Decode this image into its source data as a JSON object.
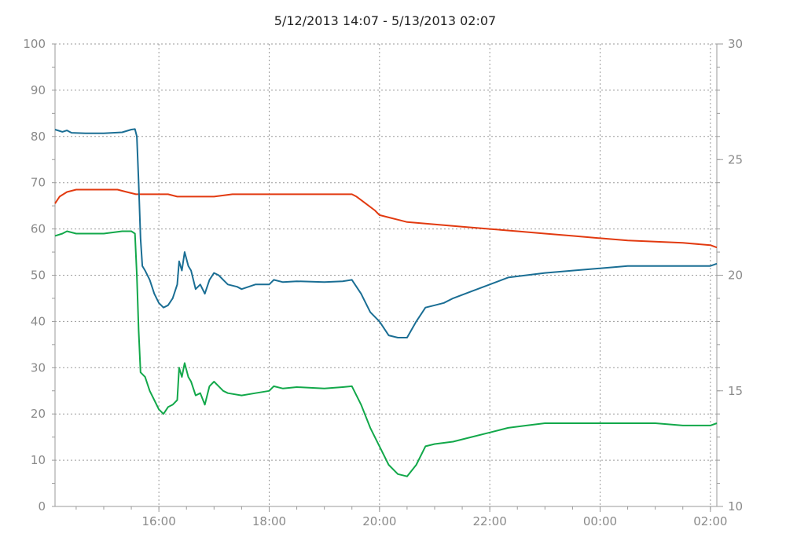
{
  "chart_data": {
    "type": "line",
    "title": "5/12/2013 14:07 - 5/13/2013 02:07",
    "xlabel": "",
    "ylabel": "",
    "x_axis": {
      "unit": "time",
      "start": "5/12/2013 14:07",
      "end": "5/13/2013 02:07",
      "tick_labels": [
        "16:00",
        "18:00",
        "20:00",
        "22:00",
        "00:00",
        "02:00"
      ]
    },
    "y_left": {
      "range": [
        0,
        100
      ],
      "tick_labels": [
        "0",
        "10",
        "20",
        "30",
        "40",
        "50",
        "60",
        "70",
        "80",
        "90",
        "100"
      ]
    },
    "y_right": {
      "range": [
        10,
        30
      ],
      "tick_labels": [
        "10",
        "15",
        "20",
        "25",
        "30"
      ]
    },
    "grid": true,
    "series": [
      {
        "axis": "right",
        "color": "#e23a10",
        "points": [
          [
            "14:07",
            23.1
          ],
          [
            "14:12",
            23.4
          ],
          [
            "14:20",
            23.6
          ],
          [
            "14:30",
            23.7
          ],
          [
            "15:00",
            23.7
          ],
          [
            "15:15",
            23.7
          ],
          [
            "15:25",
            23.6
          ],
          [
            "15:35",
            23.5
          ],
          [
            "16:00",
            23.5
          ],
          [
            "16:10",
            23.5
          ],
          [
            "16:20",
            23.4
          ],
          [
            "16:40",
            23.4
          ],
          [
            "17:00",
            23.4
          ],
          [
            "17:20",
            23.5
          ],
          [
            "17:40",
            23.5
          ],
          [
            "18:00",
            23.5
          ],
          [
            "18:30",
            23.5
          ],
          [
            "19:00",
            23.5
          ],
          [
            "19:30",
            23.5
          ],
          [
            "19:35",
            23.4
          ],
          [
            "19:45",
            23.1
          ],
          [
            "19:55",
            22.8
          ],
          [
            "20:00",
            22.6
          ],
          [
            "20:10",
            22.5
          ],
          [
            "20:20",
            22.4
          ],
          [
            "20:30",
            22.3
          ],
          [
            "21:00",
            22.2
          ],
          [
            "21:30",
            22.1
          ],
          [
            "22:00",
            22.0
          ],
          [
            "22:30",
            21.9
          ],
          [
            "23:00",
            21.8
          ],
          [
            "23:30",
            21.7
          ],
          [
            "00:00",
            21.6
          ],
          [
            "00:30",
            21.5
          ],
          [
            "01:00",
            21.45
          ],
          [
            "01:30",
            21.4
          ],
          [
            "02:00",
            21.3
          ],
          [
            "02:07",
            21.2
          ]
        ]
      },
      {
        "axis": "left",
        "color": "#1a6e94",
        "points": [
          [
            "14:07",
            81.5
          ],
          [
            "14:15",
            81
          ],
          [
            "14:20",
            81.3
          ],
          [
            "14:25",
            80.8
          ],
          [
            "14:40",
            80.7
          ],
          [
            "15:00",
            80.7
          ],
          [
            "15:20",
            80.9
          ],
          [
            "15:30",
            81.5
          ],
          [
            "15:34",
            81.6
          ],
          [
            "15:36",
            80
          ],
          [
            "15:38",
            70
          ],
          [
            "15:40",
            58
          ],
          [
            "15:42",
            52
          ],
          [
            "15:45",
            51
          ],
          [
            "15:50",
            49
          ],
          [
            "15:55",
            46
          ],
          [
            "16:00",
            44
          ],
          [
            "16:05",
            43
          ],
          [
            "16:10",
            43.5
          ],
          [
            "16:15",
            45
          ],
          [
            "16:20",
            48
          ],
          [
            "16:22",
            53
          ],
          [
            "16:25",
            51
          ],
          [
            "16:28",
            55
          ],
          [
            "16:32",
            52
          ],
          [
            "16:35",
            51
          ],
          [
            "16:40",
            47
          ],
          [
            "16:45",
            48
          ],
          [
            "16:50",
            46
          ],
          [
            "16:55",
            49
          ],
          [
            "17:00",
            50.5
          ],
          [
            "17:05",
            50
          ],
          [
            "17:10",
            49
          ],
          [
            "17:15",
            48
          ],
          [
            "17:25",
            47.5
          ],
          [
            "17:30",
            47
          ],
          [
            "17:45",
            48
          ],
          [
            "18:00",
            48
          ],
          [
            "18:05",
            49
          ],
          [
            "18:15",
            48.5
          ],
          [
            "18:30",
            48.7
          ],
          [
            "19:00",
            48.5
          ],
          [
            "19:20",
            48.7
          ],
          [
            "19:30",
            49
          ],
          [
            "19:40",
            46
          ],
          [
            "19:50",
            42
          ],
          [
            "20:00",
            40
          ],
          [
            "20:10",
            37
          ],
          [
            "20:20",
            36.5
          ],
          [
            "20:30",
            36.5
          ],
          [
            "20:40",
            40
          ],
          [
            "20:50",
            43
          ],
          [
            "21:00",
            43.5
          ],
          [
            "21:10",
            44
          ],
          [
            "21:20",
            45
          ],
          [
            "21:40",
            46.5
          ],
          [
            "22:00",
            48
          ],
          [
            "22:20",
            49.5
          ],
          [
            "22:40",
            50
          ],
          [
            "23:00",
            50.5
          ],
          [
            "23:30",
            51
          ],
          [
            "00:00",
            51.5
          ],
          [
            "00:30",
            52
          ],
          [
            "01:00",
            52
          ],
          [
            "01:30",
            52
          ],
          [
            "02:00",
            52
          ],
          [
            "02:07",
            52.5
          ]
        ]
      },
      {
        "axis": "left",
        "color": "#12a84a",
        "points": [
          [
            "14:07",
            58.5
          ],
          [
            "14:15",
            59
          ],
          [
            "14:20",
            59.5
          ],
          [
            "14:30",
            59
          ],
          [
            "15:00",
            59
          ],
          [
            "15:20",
            59.5
          ],
          [
            "15:30",
            59.5
          ],
          [
            "15:34",
            59
          ],
          [
            "15:36",
            50
          ],
          [
            "15:38",
            38
          ],
          [
            "15:40",
            29
          ],
          [
            "15:45",
            28
          ],
          [
            "15:50",
            25
          ],
          [
            "15:55",
            23
          ],
          [
            "16:00",
            21
          ],
          [
            "16:05",
            20
          ],
          [
            "16:10",
            21.5
          ],
          [
            "16:15",
            22
          ],
          [
            "16:20",
            23
          ],
          [
            "16:22",
            30
          ],
          [
            "16:25",
            28
          ],
          [
            "16:28",
            31
          ],
          [
            "16:32",
            28
          ],
          [
            "16:35",
            27
          ],
          [
            "16:40",
            24
          ],
          [
            "16:45",
            24.5
          ],
          [
            "16:50",
            22
          ],
          [
            "16:55",
            26
          ],
          [
            "17:00",
            27
          ],
          [
            "17:05",
            26
          ],
          [
            "17:10",
            25
          ],
          [
            "17:15",
            24.5
          ],
          [
            "17:30",
            24
          ],
          [
            "17:45",
            24.5
          ],
          [
            "18:00",
            25
          ],
          [
            "18:05",
            26
          ],
          [
            "18:15",
            25.5
          ],
          [
            "18:30",
            25.8
          ],
          [
            "19:00",
            25.5
          ],
          [
            "19:20",
            25.8
          ],
          [
            "19:30",
            26
          ],
          [
            "19:40",
            22
          ],
          [
            "19:50",
            17
          ],
          [
            "20:00",
            13
          ],
          [
            "20:10",
            9
          ],
          [
            "20:20",
            7
          ],
          [
            "20:30",
            6.5
          ],
          [
            "20:40",
            9
          ],
          [
            "20:50",
            13
          ],
          [
            "21:00",
            13.5
          ],
          [
            "21:20",
            14
          ],
          [
            "21:40",
            15
          ],
          [
            "22:00",
            16
          ],
          [
            "22:20",
            17
          ],
          [
            "22:40",
            17.5
          ],
          [
            "23:00",
            18
          ],
          [
            "23:30",
            18
          ],
          [
            "00:00",
            18
          ],
          [
            "00:30",
            18
          ],
          [
            "01:00",
            18
          ],
          [
            "01:30",
            17.5
          ],
          [
            "02:00",
            17.5
          ],
          [
            "02:07",
            18
          ]
        ]
      }
    ]
  }
}
